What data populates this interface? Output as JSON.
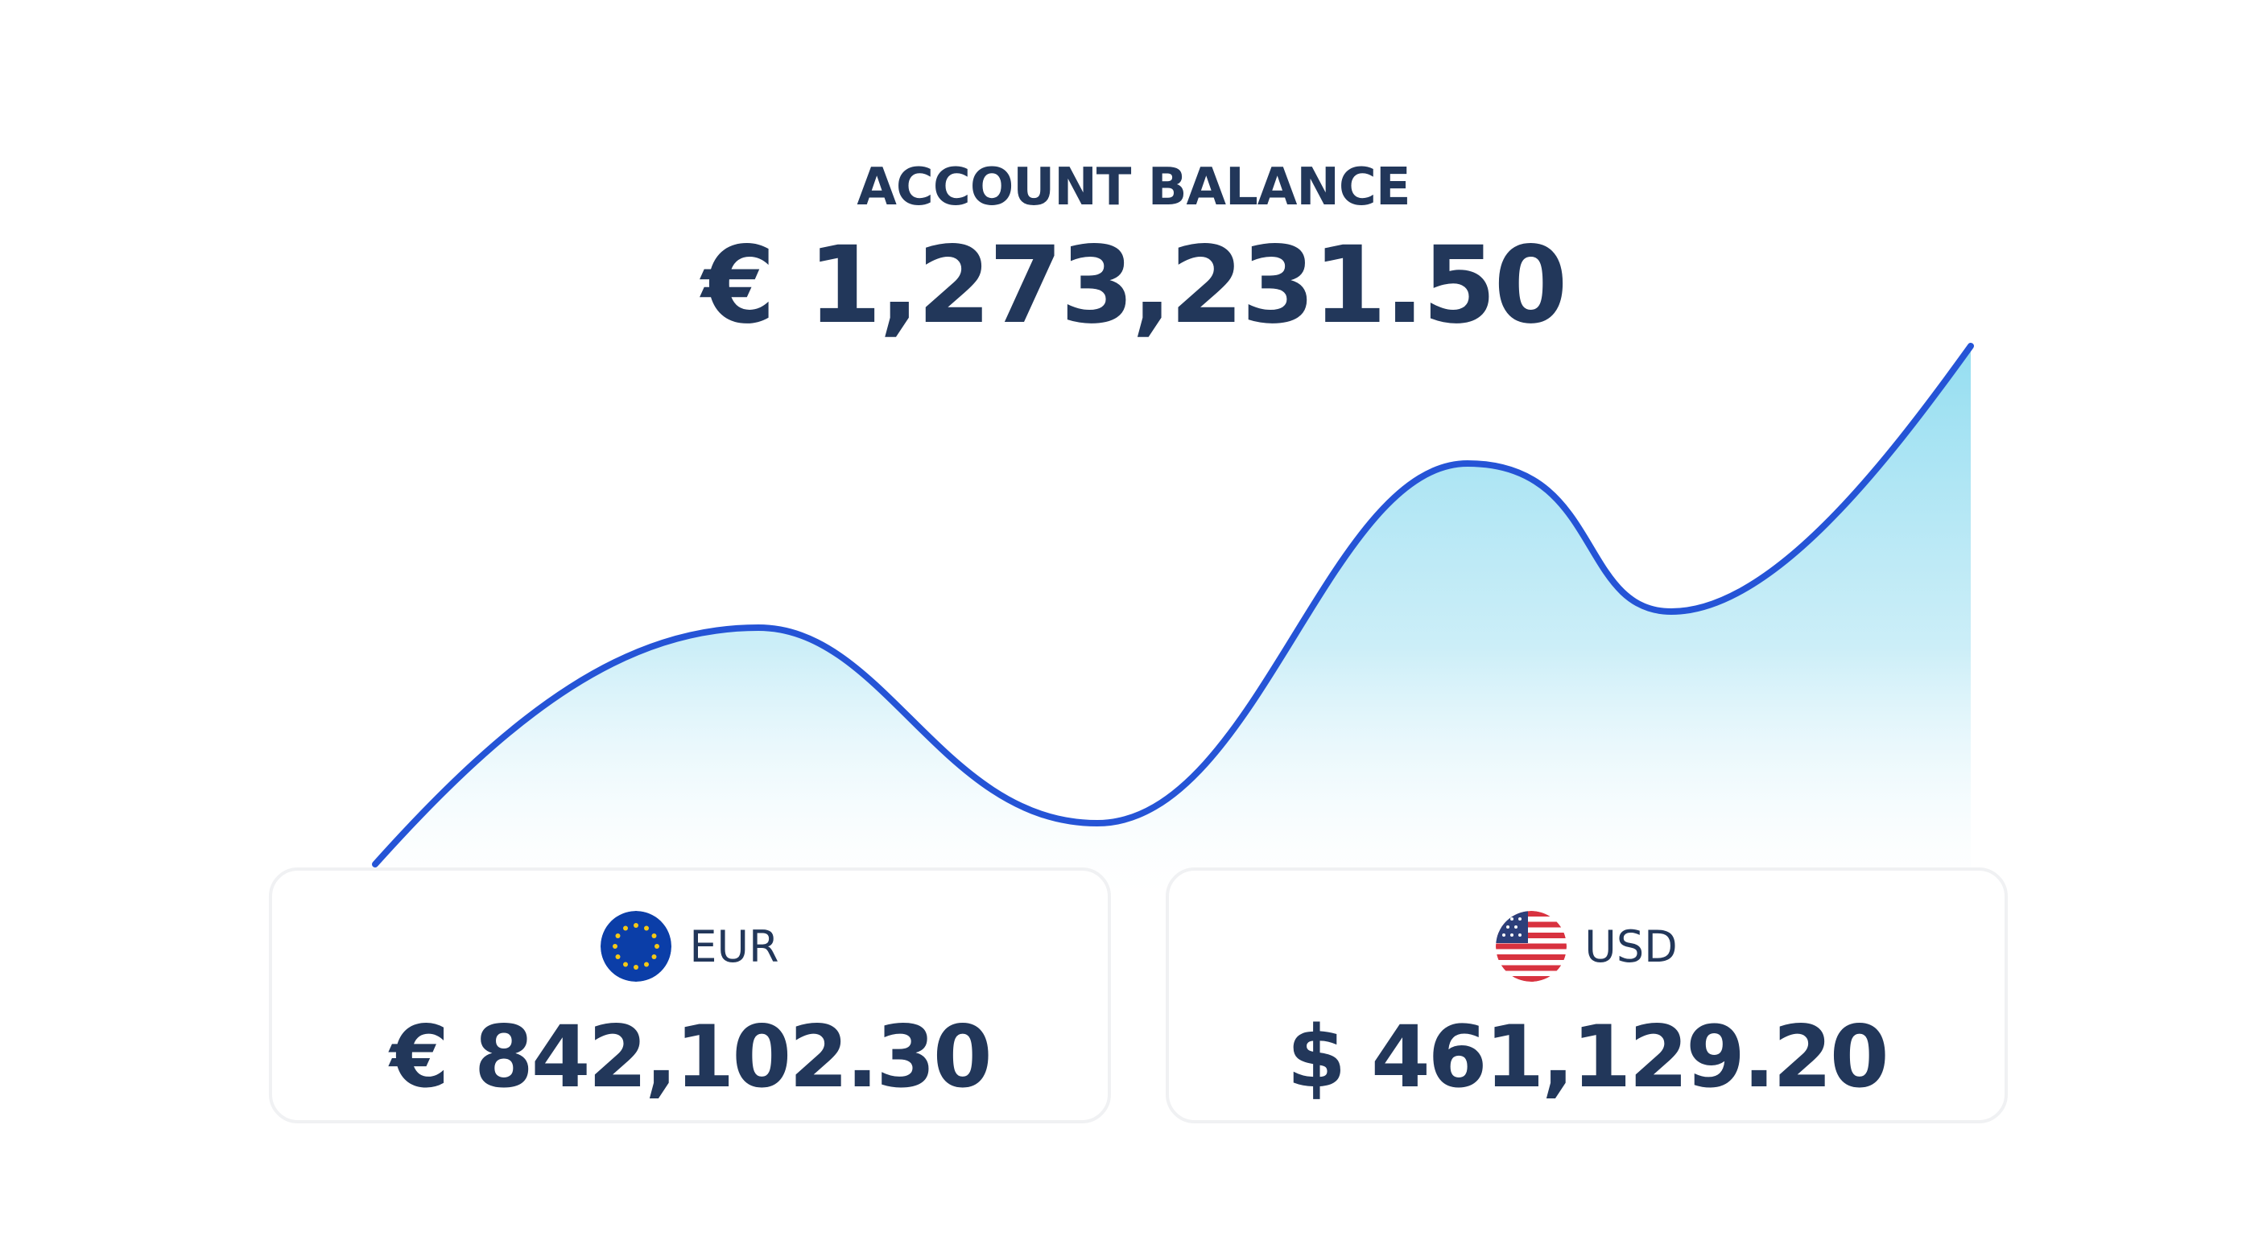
{
  "header": {
    "title": "ACCOUNT BALANCE",
    "total": "€ 1,273,231.50"
  },
  "chart": {
    "line_color": "#2554d6",
    "fill_color": "#8fdcf0"
  },
  "accounts": [
    {
      "code": "EUR",
      "amount": "€ 842,102.30",
      "icon": "eu-flag-icon"
    },
    {
      "code": "USD",
      "amount": "$ 461,129.20",
      "icon": "us-flag-icon"
    }
  ]
}
